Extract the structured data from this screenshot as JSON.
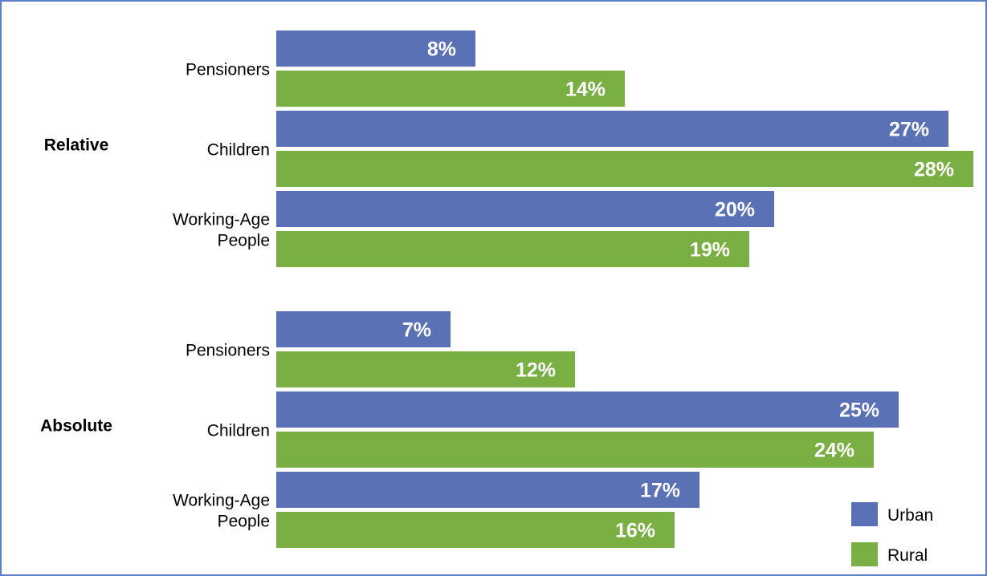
{
  "chart_data": {
    "type": "bar",
    "orientation": "horizontal",
    "title": "",
    "xlabel": "",
    "ylabel": "",
    "xlim": [
      0,
      28
    ],
    "grid": false,
    "legend": "bottom-right",
    "colors": {
      "Urban": "#5b71b6",
      "Rural": "#7aaf44"
    },
    "groups": [
      {
        "name": "Relative",
        "categories": [
          {
            "label_lines": [
              "Pensioners"
            ],
            "values": {
              "Urban": 8,
              "Rural": 14
            },
            "labels": {
              "Urban": "8%",
              "Rural": "14%"
            }
          },
          {
            "label_lines": [
              "Children"
            ],
            "values": {
              "Urban": 27,
              "Rural": 28
            },
            "labels": {
              "Urban": "27%",
              "Rural": "28%"
            }
          },
          {
            "label_lines": [
              "Working-Age",
              "People"
            ],
            "values": {
              "Urban": 20,
              "Rural": 19
            },
            "labels": {
              "Urban": "20%",
              "Rural": "19%"
            }
          }
        ]
      },
      {
        "name": "Absolute",
        "categories": [
          {
            "label_lines": [
              "Pensioners"
            ],
            "values": {
              "Urban": 7,
              "Rural": 12
            },
            "labels": {
              "Urban": "7%",
              "Rural": "12%"
            }
          },
          {
            "label_lines": [
              "Children"
            ],
            "values": {
              "Urban": 25,
              "Rural": 24
            },
            "labels": {
              "Urban": "25%",
              "Rural": "24%"
            }
          },
          {
            "label_lines": [
              "Working-Age",
              "People"
            ],
            "values": {
              "Urban": 17,
              "Rural": 16
            },
            "labels": {
              "Urban": "17%",
              "Rural": "16%"
            }
          }
        ]
      }
    ],
    "series": [
      {
        "name": "Urban"
      },
      {
        "name": "Rural"
      }
    ]
  }
}
